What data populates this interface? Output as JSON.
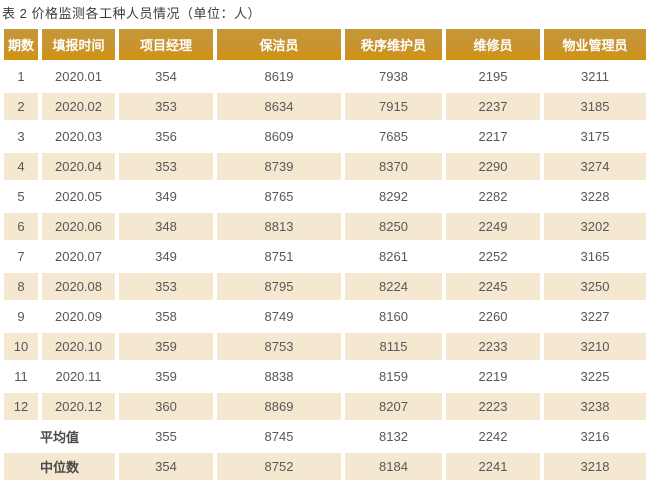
{
  "title": "表 2  价格监测各工种人员情况（单位：人）",
  "colors": {
    "header_bg": "#c89430",
    "header_bg_bottom_edge": "#d0940e",
    "header_text": "#ffffff",
    "row_alt_bg": "#f5e8d1",
    "row_bg": "#ffffff",
    "body_text": "#595757",
    "title_text": "#3d3d3d"
  },
  "chart_data": {
    "type": "table",
    "title": "表 2  价格监测各工种人员情况（单位：人）",
    "columns": [
      "期数",
      "填报时间",
      "项目经理",
      "保洁员",
      "秩序维护员",
      "维修员",
      "物业管理员"
    ],
    "rows": [
      [
        "1",
        "2020.01",
        "354",
        "8619",
        "7938",
        "2195",
        "3211"
      ],
      [
        "2",
        "2020.02",
        "353",
        "8634",
        "7915",
        "2237",
        "3185"
      ],
      [
        "3",
        "2020.03",
        "356",
        "8609",
        "7685",
        "2217",
        "3175"
      ],
      [
        "4",
        "2020.04",
        "353",
        "8739",
        "8370",
        "2290",
        "3274"
      ],
      [
        "5",
        "2020.05",
        "349",
        "8765",
        "8292",
        "2282",
        "3228"
      ],
      [
        "6",
        "2020.06",
        "348",
        "8813",
        "8250",
        "2249",
        "3202"
      ],
      [
        "7",
        "2020.07",
        "349",
        "8751",
        "8261",
        "2252",
        "3165"
      ],
      [
        "8",
        "2020.08",
        "353",
        "8795",
        "8224",
        "2245",
        "3250"
      ],
      [
        "9",
        "2020.09",
        "358",
        "8749",
        "8160",
        "2260",
        "3227"
      ],
      [
        "10",
        "2020.10",
        "359",
        "8753",
        "8115",
        "2233",
        "3210"
      ],
      [
        "11",
        "2020.11",
        "359",
        "8838",
        "8159",
        "2219",
        "3225"
      ],
      [
        "12",
        "2020.12",
        "360",
        "8869",
        "8207",
        "2223",
        "3238"
      ]
    ],
    "summary_rows": [
      {
        "label": "平均值",
        "values": [
          "355",
          "8745",
          "8132",
          "2242",
          "3216"
        ]
      },
      {
        "label": "中位数",
        "values": [
          "354",
          "8752",
          "8184",
          "2241",
          "3218"
        ]
      }
    ]
  }
}
